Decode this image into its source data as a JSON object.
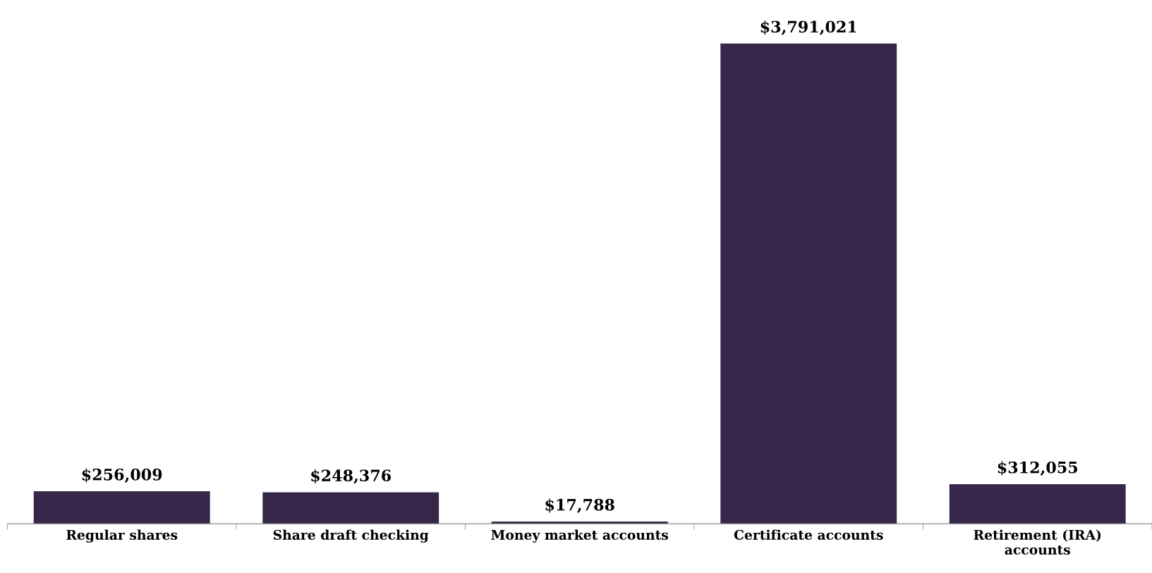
{
  "chart_data": {
    "type": "bar",
    "categories": [
      "Regular shares",
      "Share draft checking",
      "Money market accounts",
      "Certificate accounts",
      "Retirement (IRA) accounts"
    ],
    "values": [
      256009,
      248376,
      17788,
      3791021,
      312055
    ],
    "value_labels": [
      "$256,009",
      "$248,376",
      "$17,788",
      "$3,791,021",
      "$312,055"
    ],
    "color": "#35264a",
    "grid": false,
    "legend": false
  }
}
